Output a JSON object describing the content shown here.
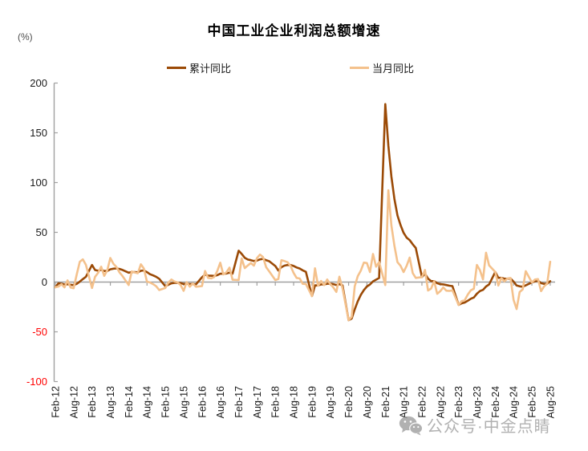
{
  "chart_data": {
    "type": "line",
    "title": "中国工业企业利润总额增速",
    "unit_label": "(%)",
    "legend": [
      {
        "label": "累计同比",
        "color": "#9B4A06"
      },
      {
        "label": "当月同比",
        "color": "#F4C18C"
      }
    ],
    "ylim": [
      -100,
      200
    ],
    "yticks": [
      200,
      150,
      100,
      50,
      0,
      -50,
      -100
    ],
    "axis_color": "#A0A0A0",
    "tick_label_color": "#1a1a1a",
    "negative_tick_color": "#FF0000",
    "legend_position": "top",
    "grid": "zero-line-only",
    "x_tick_labels": [
      "Feb-12",
      "Aug-12",
      "Feb-13",
      "Aug-13",
      "Feb-14",
      "Aug-14",
      "Feb-15",
      "Aug-15",
      "Feb-16",
      "Aug-16",
      "Feb-17",
      "Aug-17",
      "Feb-18",
      "Aug-18",
      "Feb-19",
      "Aug-19",
      "Feb-20",
      "Aug-20",
      "Feb-21",
      "Aug-21",
      "Feb-22",
      "Aug-22",
      "Feb-23",
      "Aug-23",
      "Feb-24",
      "Aug-24",
      "Feb-25",
      "Aug-25"
    ],
    "columns": [
      "month",
      "累计同比",
      "当月同比"
    ],
    "points": [
      [
        "Feb-12",
        -5.2,
        -5.2
      ],
      [
        "Mar-12",
        -1.3,
        -4.5
      ],
      [
        "Apr-12",
        -1.6,
        -2.2
      ],
      [
        "May-12",
        -2.4,
        -5.3
      ],
      [
        "Jun-12",
        -2.2,
        1.7
      ],
      [
        "Jul-12",
        -2.7,
        -5.4
      ],
      [
        "Aug-12",
        -3.1,
        -6.2
      ],
      [
        "Sep-12",
        -1.8,
        7.8
      ],
      [
        "Oct-12",
        0.5,
        20.5
      ],
      [
        "Nov-12",
        3.0,
        22.8
      ],
      [
        "Dec-12",
        5.3,
        17.3
      ],
      [
        "Feb-13",
        17.2,
        -6.0
      ],
      [
        "Mar-13",
        12.1,
        5.3
      ],
      [
        "Apr-13",
        11.4,
        9.3
      ],
      [
        "May-13",
        12.3,
        15.5
      ],
      [
        "Jun-13",
        11.1,
        6.3
      ],
      [
        "Jul-13",
        11.1,
        11.6
      ],
      [
        "Aug-13",
        12.8,
        24.2
      ],
      [
        "Sep-13",
        13.5,
        18.4
      ],
      [
        "Oct-13",
        13.7,
        15.1
      ],
      [
        "Nov-13",
        13.2,
        9.7
      ],
      [
        "Dec-13",
        12.2,
        6.0
      ],
      [
        "Feb-14",
        9.4,
        -3.0
      ],
      [
        "Mar-14",
        10.1,
        10.7
      ],
      [
        "Apr-14",
        10.0,
        9.6
      ],
      [
        "May-14",
        9.8,
        8.9
      ],
      [
        "Jun-14",
        11.4,
        17.9
      ],
      [
        "Jul-14",
        11.7,
        13.5
      ],
      [
        "Aug-14",
        10.0,
        0.4
      ],
      [
        "Sep-14",
        7.9,
        -0.4
      ],
      [
        "Oct-14",
        6.7,
        -2.1
      ],
      [
        "Nov-14",
        5.3,
        -4.2
      ],
      [
        "Dec-14",
        3.3,
        -8.0
      ],
      [
        "Feb-15",
        -4.2,
        -6.0
      ],
      [
        "Mar-15",
        -2.7,
        -0.4
      ],
      [
        "Apr-15",
        -1.3,
        2.6
      ],
      [
        "May-15",
        -0.8,
        0.6
      ],
      [
        "Jun-15",
        -0.7,
        -0.3
      ],
      [
        "Jul-15",
        -1.0,
        -2.9
      ],
      [
        "Aug-15",
        -1.9,
        -8.8
      ],
      [
        "Sep-15",
        -1.7,
        -0.1
      ],
      [
        "Oct-15",
        -2.0,
        -4.6
      ],
      [
        "Nov-15",
        -1.9,
        -1.4
      ],
      [
        "Dec-15",
        -2.3,
        -4.7
      ],
      [
        "Feb-16",
        4.8,
        -4.0
      ],
      [
        "Mar-16",
        7.4,
        11.1
      ],
      [
        "Apr-16",
        6.5,
        4.2
      ],
      [
        "May-16",
        6.4,
        3.7
      ],
      [
        "Jun-16",
        6.2,
        5.1
      ],
      [
        "Jul-16",
        6.9,
        11.0
      ],
      [
        "Aug-16",
        8.4,
        19.5
      ],
      [
        "Sep-16",
        8.4,
        7.7
      ],
      [
        "Oct-16",
        8.6,
        9.8
      ],
      [
        "Nov-16",
        9.4,
        14.5
      ],
      [
        "Dec-16",
        8.5,
        2.3
      ],
      [
        "Feb-17",
        31.5,
        2.0
      ],
      [
        "Mar-17",
        28.3,
        23.8
      ],
      [
        "Apr-17",
        24.4,
        14.0
      ],
      [
        "May-17",
        22.7,
        16.7
      ],
      [
        "Jun-17",
        22.0,
        19.1
      ],
      [
        "Jul-17",
        21.2,
        16.5
      ],
      [
        "Aug-17",
        21.6,
        24.0
      ],
      [
        "Sep-17",
        22.8,
        27.7
      ],
      [
        "Oct-17",
        23.3,
        25.1
      ],
      [
        "Nov-17",
        21.9,
        14.9
      ],
      [
        "Dec-17",
        21.0,
        10.8
      ],
      [
        "Feb-18",
        16.1,
        2.0
      ],
      [
        "Mar-18",
        11.6,
        3.1
      ],
      [
        "Apr-18",
        15.0,
        21.9
      ],
      [
        "May-18",
        16.5,
        21.1
      ],
      [
        "Jun-18",
        17.2,
        20.0
      ],
      [
        "Jul-18",
        17.1,
        16.2
      ],
      [
        "Aug-18",
        16.2,
        9.2
      ],
      [
        "Sep-18",
        14.7,
        4.1
      ],
      [
        "Oct-18",
        13.6,
        3.6
      ],
      [
        "Nov-18",
        11.8,
        -1.8
      ],
      [
        "Dec-18",
        10.3,
        -1.9
      ],
      [
        "Feb-19",
        -14.0,
        -14.0
      ],
      [
        "Mar-19",
        -3.3,
        13.9
      ],
      [
        "Apr-19",
        -3.4,
        -3.7
      ],
      [
        "May-19",
        -2.3,
        1.1
      ],
      [
        "Jun-19",
        -2.4,
        -3.1
      ],
      [
        "Jul-19",
        -1.7,
        2.6
      ],
      [
        "Aug-19",
        -1.7,
        -2.0
      ],
      [
        "Sep-19",
        -2.1,
        -5.3
      ],
      [
        "Oct-19",
        -2.9,
        -9.9
      ],
      [
        "Nov-19",
        -2.1,
        5.4
      ],
      [
        "Dec-19",
        -3.3,
        -6.3
      ],
      [
        "Feb-20",
        -38.3,
        -38.3
      ],
      [
        "Mar-20",
        -36.7,
        -34.9
      ],
      [
        "Apr-20",
        -27.4,
        -4.3
      ],
      [
        "May-20",
        -19.3,
        6.0
      ],
      [
        "Jun-20",
        -12.8,
        11.5
      ],
      [
        "Jul-20",
        -8.1,
        19.6
      ],
      [
        "Aug-20",
        -4.4,
        19.1
      ],
      [
        "Sep-20",
        -2.4,
        10.1
      ],
      [
        "Oct-20",
        0.7,
        28.2
      ],
      [
        "Nov-20",
        2.4,
        15.5
      ],
      [
        "Dec-20",
        4.1,
        20.1
      ],
      [
        "Feb-21",
        178.9,
        -3.0
      ],
      [
        "Mar-21",
        137.3,
        92.3
      ],
      [
        "Apr-21",
        106.1,
        57.0
      ],
      [
        "May-21",
        83.4,
        36.4
      ],
      [
        "Jun-21",
        66.9,
        20.0
      ],
      [
        "Jul-21",
        57.3,
        16.4
      ],
      [
        "Aug-21",
        49.5,
        10.1
      ],
      [
        "Sep-21",
        44.7,
        16.3
      ],
      [
        "Oct-21",
        42.2,
        24.6
      ],
      [
        "Nov-21",
        38.0,
        9.0
      ],
      [
        "Dec-21",
        34.3,
        4.2
      ],
      [
        "Feb-22",
        5.0,
        5.0
      ],
      [
        "Mar-22",
        8.5,
        12.2
      ],
      [
        "Apr-22",
        3.5,
        -8.5
      ],
      [
        "May-22",
        1.0,
        -6.5
      ],
      [
        "Jun-22",
        1.0,
        0.8
      ],
      [
        "Jul-22",
        -1.1,
        -11.8
      ],
      [
        "Aug-22",
        -2.1,
        -9.2
      ],
      [
        "Sep-22",
        -2.3,
        -5.3
      ],
      [
        "Oct-22",
        -3.0,
        -8.6
      ],
      [
        "Nov-22",
        -3.6,
        -8.9
      ],
      [
        "Dec-22",
        -4.0,
        -8.3
      ],
      [
        "Feb-23",
        -22.9,
        -22.9
      ],
      [
        "Mar-23",
        -21.4,
        -19.2
      ],
      [
        "Apr-23",
        -20.6,
        -18.2
      ],
      [
        "May-23",
        -18.8,
        -12.6
      ],
      [
        "Jun-23",
        -16.8,
        -8.3
      ],
      [
        "Jul-23",
        -15.5,
        -6.7
      ],
      [
        "Aug-23",
        -11.7,
        17.2
      ],
      [
        "Sep-23",
        -9.0,
        11.9
      ],
      [
        "Oct-23",
        -7.8,
        2.7
      ],
      [
        "Nov-23",
        -4.4,
        29.5
      ],
      [
        "Dec-23",
        -2.3,
        16.8
      ],
      [
        "Feb-24",
        10.2,
        10.2
      ],
      [
        "Mar-24",
        4.3,
        -3.5
      ],
      [
        "Apr-24",
        4.3,
        4.0
      ],
      [
        "May-24",
        3.4,
        0.7
      ],
      [
        "Jun-24",
        3.5,
        3.6
      ],
      [
        "Jul-24",
        3.6,
        4.1
      ],
      [
        "Aug-24",
        0.5,
        -17.8
      ],
      [
        "Sep-24",
        -3.5,
        -27.1
      ],
      [
        "Oct-24",
        -4.3,
        -10.0
      ],
      [
        "Nov-24",
        -4.7,
        -7.3
      ],
      [
        "Dec-24",
        -3.3,
        11.0
      ],
      [
        "Feb-25",
        -0.3,
        -0.3
      ],
      [
        "Mar-25",
        0.8,
        2.6
      ],
      [
        "Apr-25",
        1.4,
        3.0
      ],
      [
        "May-25",
        -1.1,
        -9.1
      ],
      [
        "Jun-25",
        -1.8,
        -4.3
      ],
      [
        "Jul-25",
        -1.7,
        -1.5
      ],
      [
        "Aug-25",
        0.9,
        20.4
      ]
    ],
    "watermark": {
      "text": "公众号·中金点睛",
      "icon": "wechat-icon",
      "color": "#9e9e9e"
    }
  }
}
